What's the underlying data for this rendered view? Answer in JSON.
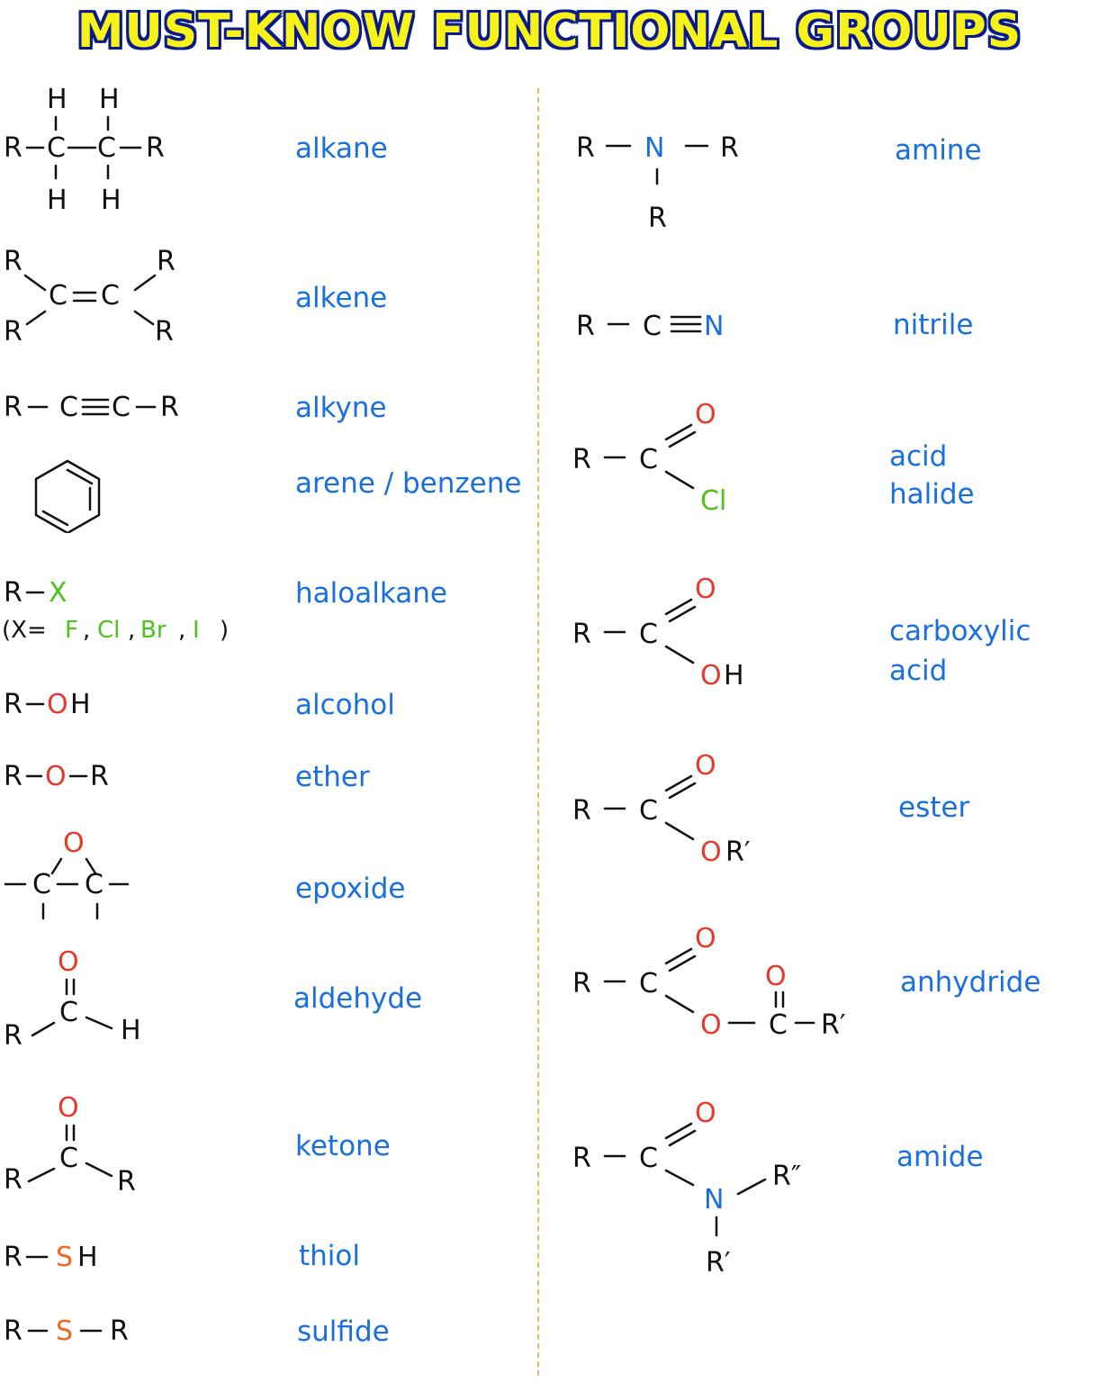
{
  "title": "MUST-KNOW FUNCTIONAL GROUPS",
  "colors": {
    "title_fill": "#f7f21a",
    "title_outline": "#0a1a8c",
    "name_text": "#1a6fe0",
    "oxygen": "#e33b2b",
    "halogen": "#4cc21b",
    "nitrogen": "#1a6fe0",
    "sulfur": "#f06a1e",
    "divider": "#f2b66a"
  },
  "groups": {
    "alkane": "alkane",
    "alkene": "alkene",
    "alkyne": "alkyne",
    "arene": "arene / benzene",
    "haloalkane": "haloalkane",
    "alcohol": "alcohol",
    "ether": "ether",
    "epoxide": "epoxide",
    "aldehyde": "aldehyde",
    "ketone": "ketone",
    "thiol": "thiol",
    "sulfide": "sulfide",
    "amine": "amine",
    "nitrile": "nitrile",
    "acid_halide_1": "acid",
    "acid_halide_2": "halide",
    "carboxylic_acid_1": "carboxylic",
    "carboxylic_acid_2": "acid",
    "ester": "ester",
    "anhydride": "anhydride",
    "amide": "amide"
  },
  "atoms": {
    "H": "H",
    "R": "R",
    "C": "C",
    "O": "O",
    "N": "N",
    "S": "S",
    "X": "X",
    "F": "F",
    "Cl": "Cl",
    "Br": "Br",
    "I": "I",
    "OH": "OH",
    "SH": "SH",
    "Rp": "R′",
    "Rpp": "R″",
    "x_eq": "(X=",
    "comma": ",",
    "close": ")"
  }
}
